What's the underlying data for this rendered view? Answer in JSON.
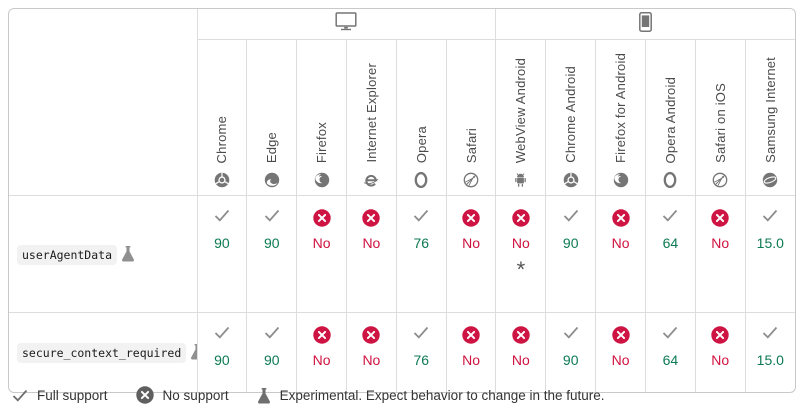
{
  "colors": {
    "supported": "#0d7a53",
    "unsupported": "#d0123f",
    "no_badge": "#cd1443",
    "check": "#8d8d8d",
    "legend_gray": "#5f5f5f",
    "icon_gray": "#757575"
  },
  "table": {
    "device_groups": [
      {
        "name": "desktop",
        "icon": "desktop-icon",
        "span": 6
      },
      {
        "name": "mobile",
        "icon": "mobile-icon",
        "span": 6
      }
    ],
    "browsers": [
      {
        "label": "Chrome",
        "icon": "chrome-icon"
      },
      {
        "label": "Edge",
        "icon": "edge-icon"
      },
      {
        "label": "Firefox",
        "icon": "firefox-icon"
      },
      {
        "label": "Internet Explorer",
        "icon": "internet-explorer-icon"
      },
      {
        "label": "Opera",
        "icon": "opera-icon"
      },
      {
        "label": "Safari",
        "icon": "safari-icon"
      },
      {
        "label": "WebView Android",
        "icon": "webview-android-icon"
      },
      {
        "label": "Chrome Android",
        "icon": "chrome-icon"
      },
      {
        "label": "Firefox for Android",
        "icon": "firefox-icon"
      },
      {
        "label": "Opera Android",
        "icon": "opera-icon"
      },
      {
        "label": "Safari on iOS",
        "icon": "safari-icon"
      },
      {
        "label": "Samsung Internet",
        "icon": "samsung-internet-icon"
      }
    ],
    "rows": [
      {
        "feature": "userAgentData",
        "experimental_icon": "flask-icon",
        "cells": [
          {
            "support": "yes",
            "icon": "check-icon",
            "label": "90"
          },
          {
            "support": "yes",
            "icon": "check-icon",
            "label": "90"
          },
          {
            "support": "no",
            "icon": "cross-icon",
            "label": "No"
          },
          {
            "support": "no",
            "icon": "cross-icon",
            "label": "No"
          },
          {
            "support": "yes",
            "icon": "check-icon",
            "label": "76"
          },
          {
            "support": "no",
            "icon": "cross-icon",
            "label": "No"
          },
          {
            "support": "no",
            "icon": "cross-icon",
            "label": "No",
            "footnote": "*"
          },
          {
            "support": "yes",
            "icon": "check-icon",
            "label": "90"
          },
          {
            "support": "no",
            "icon": "cross-icon",
            "label": "No"
          },
          {
            "support": "yes",
            "icon": "check-icon",
            "label": "64"
          },
          {
            "support": "no",
            "icon": "cross-icon",
            "label": "No"
          },
          {
            "support": "yes",
            "icon": "check-icon",
            "label": "15.0"
          }
        ]
      },
      {
        "feature": "secure_context_required",
        "experimental_icon": "flask-icon",
        "cells": [
          {
            "support": "yes",
            "icon": "check-icon",
            "label": "90"
          },
          {
            "support": "yes",
            "icon": "check-icon",
            "label": "90"
          },
          {
            "support": "no",
            "icon": "cross-icon",
            "label": "No"
          },
          {
            "support": "no",
            "icon": "cross-icon",
            "label": "No"
          },
          {
            "support": "yes",
            "icon": "check-icon",
            "label": "76"
          },
          {
            "support": "no",
            "icon": "cross-icon",
            "label": "No"
          },
          {
            "support": "no",
            "icon": "cross-icon",
            "label": "No"
          },
          {
            "support": "yes",
            "icon": "check-icon",
            "label": "90"
          },
          {
            "support": "no",
            "icon": "cross-icon",
            "label": "No"
          },
          {
            "support": "yes",
            "icon": "check-icon",
            "label": "64"
          },
          {
            "support": "no",
            "icon": "cross-icon",
            "label": "No"
          },
          {
            "support": "yes",
            "icon": "check-icon",
            "label": "15.0"
          }
        ]
      }
    ]
  },
  "legend": {
    "items": [
      {
        "icon": "check-icon",
        "label": "Full support"
      },
      {
        "icon": "no-support-icon",
        "label": "No support"
      },
      {
        "icon": "flask-icon",
        "label": "Experimental. Expect behavior to change in the future."
      }
    ]
  }
}
